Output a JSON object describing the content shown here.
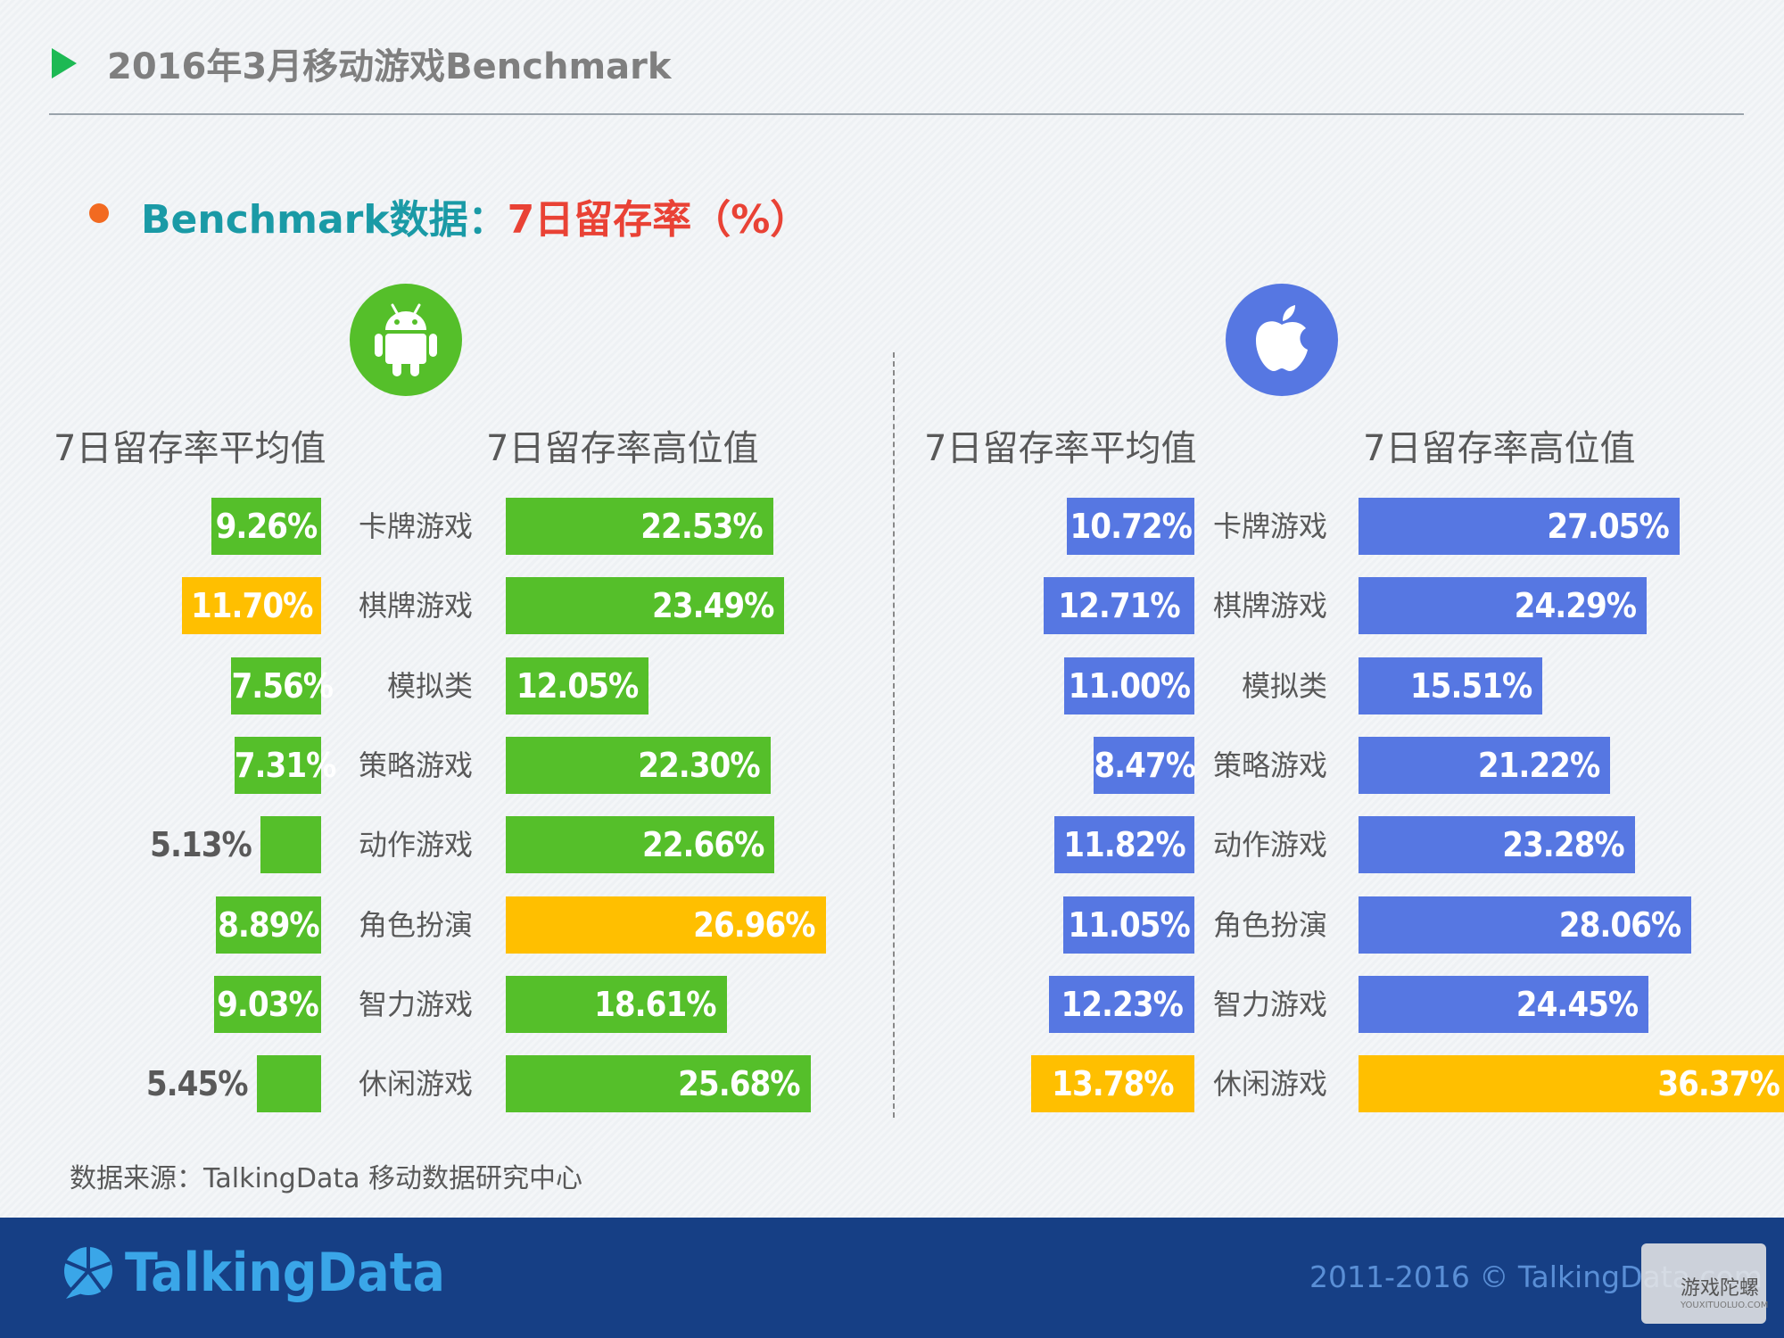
{
  "header": {
    "title": "2016年3月移动游戏Benchmark"
  },
  "subtitle": {
    "prefix": "Benchmark数据：",
    "metric": "7日留存率（%）"
  },
  "source": "数据来源：TalkingData 移动数据研究中心",
  "footer": {
    "brand": "TalkingData",
    "copyright": "2011-2016 © TalkingData.com"
  },
  "watermark": {
    "text": "游戏陀螺",
    "sub": "YOUXITUOLUO.COM"
  },
  "icons": {
    "android": "android-icon",
    "apple": "apple-icon"
  },
  "colors": {
    "android": "#55bf2a",
    "ios": "#5677e2",
    "highlight": "#ffbf00"
  },
  "chart_data": [
    {
      "type": "bar",
      "platform": "Android",
      "categories": [
        "卡牌游戏",
        "棋牌游戏",
        "模拟类",
        "策略游戏",
        "动作游戏",
        "角色扮演",
        "智力游戏",
        "休闲游戏"
      ],
      "series": [
        {
          "name": "7日留存率平均值",
          "values": [
            9.26,
            11.7,
            7.56,
            7.31,
            5.13,
            8.89,
            9.03,
            5.45
          ],
          "labels": [
            "9.26%",
            "11.70%",
            "7.56%",
            "7.31%",
            "5.13%",
            "8.89%",
            "9.03%",
            "5.45%"
          ],
          "highlight_index": 1
        },
        {
          "name": "7日留存率高位值",
          "values": [
            22.53,
            23.49,
            12.05,
            22.3,
            22.66,
            26.96,
            18.61,
            25.68
          ],
          "labels": [
            "22.53%",
            "23.49%",
            "12.05%",
            "22.30%",
            "22.66%",
            "26.96%",
            "18.61%",
            "25.68%"
          ],
          "highlight_index": 5
        }
      ]
    },
    {
      "type": "bar",
      "platform": "iOS",
      "categories": [
        "卡牌游戏",
        "棋牌游戏",
        "模拟类",
        "策略游戏",
        "动作游戏",
        "角色扮演",
        "智力游戏",
        "休闲游戏"
      ],
      "series": [
        {
          "name": "7日留存率平均值",
          "values": [
            10.72,
            12.71,
            11.0,
            8.47,
            11.82,
            11.05,
            12.23,
            13.78
          ],
          "labels": [
            "10.72%",
            "12.71%",
            "11.00%",
            "8.47%",
            "11.82%",
            "11.05%",
            "12.23%",
            "13.78%"
          ],
          "highlight_index": 7
        },
        {
          "name": "7日留存率高位值",
          "values": [
            27.05,
            24.29,
            15.51,
            21.22,
            23.28,
            28.06,
            24.45,
            36.37
          ],
          "labels": [
            "27.05%",
            "24.29%",
            "15.51%",
            "21.22%",
            "23.28%",
            "28.06%",
            "24.45%",
            "36.37%"
          ],
          "highlight_index": 7
        }
      ]
    }
  ]
}
